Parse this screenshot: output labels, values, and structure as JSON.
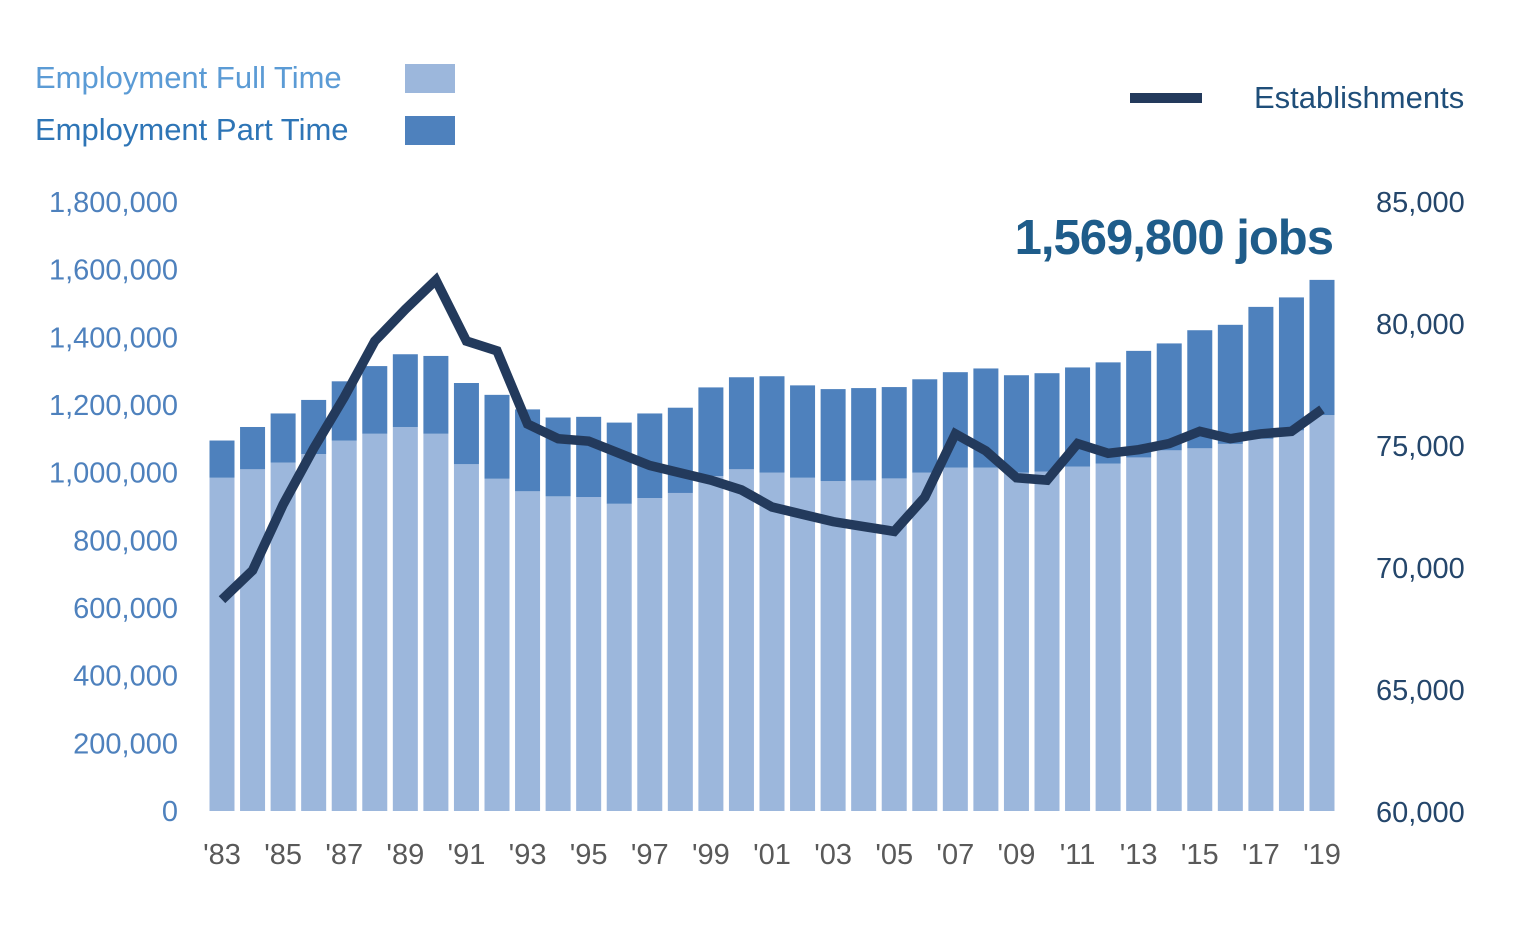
{
  "legend": {
    "full_time_label": "Employment Full Time",
    "part_time_label": "Employment Part Time",
    "establishments_label": "Establishments"
  },
  "annotation": {
    "text": "1,569,800 jobs",
    "color": "#1E5C8A"
  },
  "colors": {
    "full_time_bar": "#9CB7DC",
    "part_time_bar": "#4E81BD",
    "establishments_line": "#233A5C",
    "left_axis_text": "#4E81BD",
    "right_axis_text": "#24466B",
    "x_axis_text": "#595959"
  },
  "chart_data": {
    "type": "combo-stacked-bar-line",
    "title": "",
    "years": [
      1983,
      1984,
      1985,
      1986,
      1987,
      1988,
      1989,
      1990,
      1991,
      1992,
      1993,
      1994,
      1995,
      1996,
      1997,
      1998,
      1999,
      2000,
      2001,
      2002,
      2003,
      2004,
      2005,
      2006,
      2007,
      2008,
      2009,
      2010,
      2011,
      2012,
      2013,
      2014,
      2015,
      2016,
      2017,
      2018,
      2019
    ],
    "x_tick_labels": [
      "'83",
      "'85",
      "'87",
      "'89",
      "'91",
      "'93",
      "'95",
      "'97",
      "'99",
      "'01",
      "'03",
      "'05",
      "'07",
      "'09",
      "'11",
      "'13",
      "'15",
      "'17",
      "'19"
    ],
    "series": [
      {
        "name": "Employment Full Time",
        "type": "bar",
        "axis": "left",
        "color": "#9CB7DC",
        "values": [
          985000,
          1010000,
          1030000,
          1055000,
          1095000,
          1115000,
          1135000,
          1115000,
          1025000,
          982000,
          945000,
          930000,
          928000,
          908000,
          925000,
          940000,
          990000,
          1010000,
          1000000,
          985000,
          975000,
          977000,
          983000,
          1000000,
          1015000,
          1015000,
          1000000,
          1003000,
          1018000,
          1027000,
          1045000,
          1066000,
          1072000,
          1085000,
          1100000,
          1125000,
          1170000
        ]
      },
      {
        "name": "Employment Part Time",
        "type": "bar",
        "axis": "left",
        "stacked_on": "Employment Full Time",
        "color": "#4E81BD",
        "values": [
          110000,
          125000,
          145000,
          160000,
          175000,
          200000,
          215000,
          230000,
          240000,
          248000,
          242000,
          233000,
          237000,
          240000,
          250000,
          252000,
          262000,
          272000,
          285000,
          273000,
          272000,
          273000,
          270000,
          276000,
          282000,
          293000,
          288000,
          291000,
          293000,
          299000,
          315000,
          316000,
          349000,
          352000,
          390000,
          393000,
          399800
        ]
      },
      {
        "name": "Establishments",
        "type": "line",
        "axis": "right",
        "color": "#233A5C",
        "values": [
          68700,
          69900,
          72600,
          74900,
          77000,
          79300,
          80600,
          81800,
          79300,
          78900,
          75900,
          75300,
          75200,
          74700,
          74200,
          73900,
          73600,
          73200,
          72500,
          72200,
          71900,
          71700,
          71500,
          72900,
          75500,
          74800,
          73700,
          73600,
          75100,
          74700,
          74850,
          75100,
          75600,
          75300,
          75500,
          75600,
          76500
        ]
      }
    ],
    "left_axis": {
      "min": 0,
      "max": 1800000,
      "tick_step": 200000,
      "tick_labels": [
        "0",
        "200,000",
        "400,000",
        "600,000",
        "800,000",
        "1,000,000",
        "1,200,000",
        "1,400,000",
        "1,600,000",
        "1,800,000"
      ]
    },
    "right_axis": {
      "min": 60000,
      "max": 85000,
      "tick_step": 5000,
      "tick_labels": [
        "60,000",
        "65,000",
        "70,000",
        "75,000",
        "80,000",
        "85,000"
      ]
    },
    "grid": "off",
    "legend_position": "top",
    "annotation_text": "1,569,800 jobs"
  }
}
